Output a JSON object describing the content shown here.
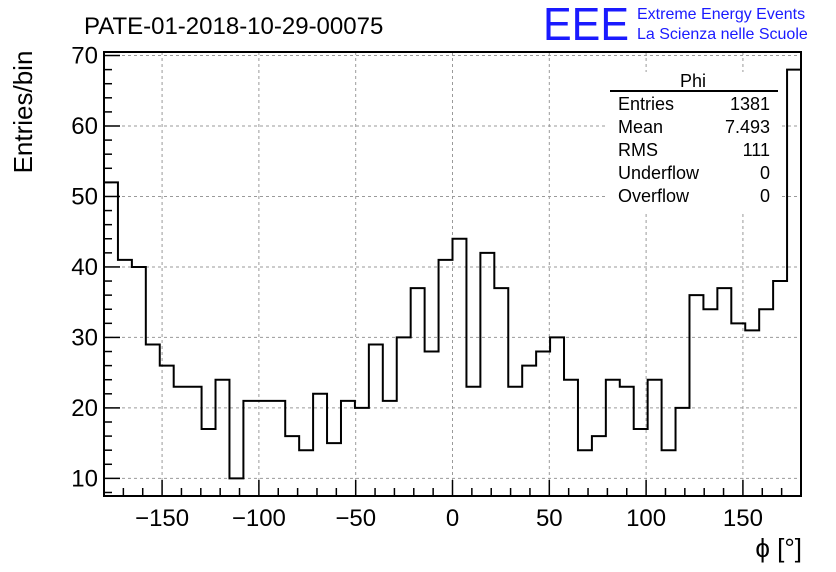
{
  "chart_data": {
    "type": "histogram",
    "title": "PATE-01-2018-10-29-00075",
    "xlabel": "ϕ [°]",
    "ylabel": "Entries/bin",
    "xlim": [
      -180,
      180
    ],
    "ylim": [
      7.5,
      70.5
    ],
    "grid": true,
    "bin_width": 7.2,
    "bin_edges_start": -180,
    "values": [
      52,
      41,
      40,
      29,
      26,
      23,
      23,
      17,
      24,
      10,
      21,
      21,
      21,
      16,
      14,
      22,
      15,
      21,
      20,
      29,
      21,
      30,
      37,
      28,
      41,
      44,
      23,
      42,
      37,
      23,
      26,
      28,
      30,
      24,
      14,
      16,
      24,
      23,
      17,
      24,
      14,
      20,
      36,
      34,
      37,
      32,
      31,
      34,
      38,
      68
    ],
    "x_ticks": [
      -150,
      -100,
      -50,
      0,
      50,
      100,
      150
    ],
    "x_tick_labels": [
      "−150",
      "−100",
      "−50",
      "0",
      "50",
      "100",
      "150"
    ],
    "y_ticks": [
      10,
      20,
      30,
      40,
      50,
      60,
      70
    ],
    "y_tick_labels": [
      "10",
      "20",
      "30",
      "40",
      "50",
      "60",
      "70"
    ],
    "stats_box": {
      "name": "Phi",
      "rows": [
        {
          "label": "Entries",
          "value": "1381"
        },
        {
          "label": "Mean",
          "value": "7.493"
        },
        {
          "label": "RMS",
          "value": "111"
        },
        {
          "label": "Underflow",
          "value": "0"
        },
        {
          "label": "Overflow",
          "value": "0"
        }
      ]
    }
  },
  "logo": {
    "text": "EEE",
    "line1": "Extreme Energy Events",
    "line2": "La Scienza nelle Scuole",
    "color": "#1a1aff"
  },
  "colors": {
    "line": "#000000",
    "grid": "#9a9a9a"
  }
}
